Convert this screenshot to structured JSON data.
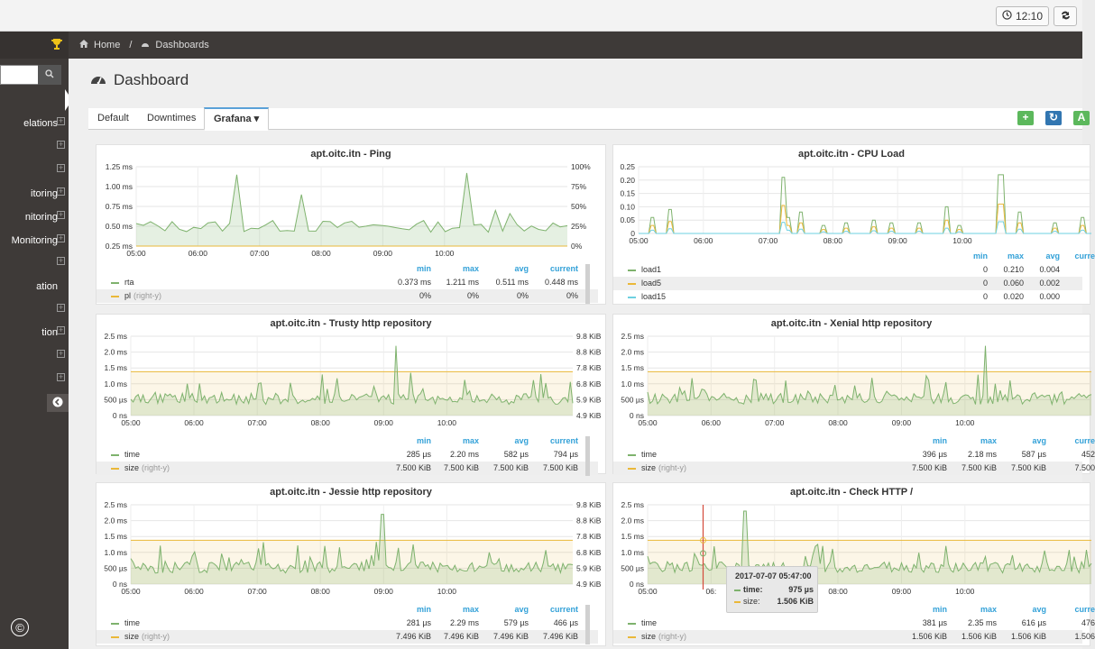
{
  "topbar": {
    "clock": "12:10"
  },
  "sidebar": {
    "items": [
      {
        "label": "elations",
        "plus": true
      },
      {
        "label": "",
        "plus": true
      },
      {
        "label": "",
        "plus": true
      },
      {
        "label": "itoring",
        "plus": true
      },
      {
        "label": "nitoring",
        "plus": true
      },
      {
        "label": "Monitoring",
        "plus": true
      },
      {
        "label": "",
        "plus": true
      },
      {
        "label": "ation",
        "plus": false
      },
      {
        "label": "",
        "plus": true
      },
      {
        "label": "tion",
        "plus": true
      },
      {
        "label": "",
        "plus": true
      },
      {
        "label": "",
        "plus": true
      }
    ],
    "copyright": "©"
  },
  "breadcrumb": {
    "home": "Home",
    "sep": "/",
    "current": "Dashboards"
  },
  "page": {
    "title": "Dashboard"
  },
  "tabs": [
    {
      "label": "Default"
    },
    {
      "label": "Downtimes"
    },
    {
      "label": "Grafana ▾"
    }
  ],
  "toolbar": {
    "add": "+",
    "refresh": "↻",
    "third": "A"
  },
  "colors": {
    "green": "#7eb26d",
    "yellow": "#eab839",
    "cyan": "#6ed0e0",
    "accent": "#33a1d8",
    "red": "#e24d42"
  },
  "panels": [
    {
      "title": "apt.oitc.itn - Ping",
      "yleft": [
        "1.25 ms",
        "1.00 ms",
        "0.75 ms",
        "0.50 ms",
        "0.25 ms"
      ],
      "yright": [
        "100%",
        "75%",
        "50%",
        "25%",
        "0%"
      ],
      "xticks": [
        "05:00",
        "06:00",
        "07:00",
        "08:00",
        "09:00",
        "10:00"
      ],
      "headers": [
        "min",
        "max",
        "avg",
        "current"
      ],
      "rows": [
        {
          "name": "rta",
          "hint": "",
          "color": "#7eb26d",
          "values": [
            "0.373 ms",
            "1.211 ms",
            "0.511 ms",
            "0.448 ms"
          ]
        },
        {
          "name": "pl",
          "hint": "(right-y)",
          "color": "#eab839",
          "values": [
            "0%",
            "0%",
            "0%",
            "0%"
          ]
        }
      ]
    },
    {
      "title": "apt.oitc.itn - CPU Load",
      "yleft": [
        "0.25",
        "0.20",
        "0.15",
        "0.10",
        "0.05",
        "0"
      ],
      "yright": [],
      "xticks": [
        "05:00",
        "06:00",
        "07:00",
        "08:00",
        "09:00",
        "10:00"
      ],
      "headers": [
        "min",
        "max",
        "avg",
        "curre"
      ],
      "rows": [
        {
          "name": "load1",
          "hint": "",
          "color": "#7eb26d",
          "values": [
            "0",
            "0.210",
            "0.004",
            ""
          ]
        },
        {
          "name": "load5",
          "hint": "",
          "color": "#eab839",
          "values": [
            "0",
            "0.060",
            "0.002",
            ""
          ]
        },
        {
          "name": "load15",
          "hint": "",
          "color": "#6ed0e0",
          "values": [
            "0",
            "0.020",
            "0.000",
            ""
          ]
        }
      ]
    },
    {
      "title": "apt.oitc.itn - Trusty http repository",
      "yleft": [
        "2.5 ms",
        "2.0 ms",
        "1.5 ms",
        "1.0 ms",
        "500 µs",
        "0 ns"
      ],
      "yright": [
        "9.8 KiB",
        "8.8 KiB",
        "7.8 KiB",
        "6.8 KiB",
        "5.9 KiB",
        "4.9 KiB"
      ],
      "xticks": [
        "05:00",
        "06:00",
        "07:00",
        "08:00",
        "09:00",
        "10:00"
      ],
      "headers": [
        "min",
        "max",
        "avg",
        "current"
      ],
      "rows": [
        {
          "name": "time",
          "hint": "",
          "color": "#7eb26d",
          "values": [
            "285 µs",
            "2.20 ms",
            "582 µs",
            "794 µs"
          ]
        },
        {
          "name": "size",
          "hint": "(right-y)",
          "color": "#eab839",
          "values": [
            "7.500 KiB",
            "7.500 KiB",
            "7.500 KiB",
            "7.500 KiB"
          ]
        }
      ]
    },
    {
      "title": "apt.oitc.itn - Xenial http repository",
      "yleft": [
        "2.5 ms",
        "2.0 ms",
        "1.5 ms",
        "1.0 ms",
        "500 µs",
        "0 ns"
      ],
      "yright": [],
      "xticks": [
        "05:00",
        "06:00",
        "07:00",
        "08:00",
        "09:00",
        "10:00"
      ],
      "headers": [
        "min",
        "max",
        "avg",
        "curre"
      ],
      "rows": [
        {
          "name": "time",
          "hint": "",
          "color": "#7eb26d",
          "values": [
            "396 µs",
            "2.18 ms",
            "587 µs",
            "452"
          ]
        },
        {
          "name": "size",
          "hint": "(right-y)",
          "color": "#eab839",
          "values": [
            "7.500 KiB",
            "7.500 KiB",
            "7.500 KiB",
            "7.500"
          ]
        }
      ]
    },
    {
      "title": "apt.oitc.itn - Jessie http repository",
      "yleft": [
        "2.5 ms",
        "2.0 ms",
        "1.5 ms",
        "1.0 ms",
        "500 µs",
        "0 ns"
      ],
      "yright": [
        "9.8 KiB",
        "8.8 KiB",
        "7.8 KiB",
        "6.8 KiB",
        "5.9 KiB",
        "4.9 KiB"
      ],
      "xticks": [
        "05:00",
        "06:00",
        "07:00",
        "08:00",
        "09:00",
        "10:00"
      ],
      "headers": [
        "min",
        "max",
        "avg",
        "current"
      ],
      "rows": [
        {
          "name": "time",
          "hint": "",
          "color": "#7eb26d",
          "values": [
            "281 µs",
            "2.29 ms",
            "579 µs",
            "466 µs"
          ]
        },
        {
          "name": "size",
          "hint": "(right-y)",
          "color": "#eab839",
          "values": [
            "7.496 KiB",
            "7.496 KiB",
            "7.496 KiB",
            "7.496 KiB"
          ]
        }
      ]
    },
    {
      "title": "apt.oitc.itn - Check HTTP /",
      "yleft": [
        "2.5 ms",
        "2.0 ms",
        "1.5 ms",
        "1.0 ms",
        "500 µs",
        "0 ns"
      ],
      "yright": [],
      "xticks": [
        "05:00",
        "06:",
        "07:00",
        "08:00",
        "09:00",
        "10:00"
      ],
      "headers": [
        "min",
        "max",
        "avg",
        "curre"
      ],
      "rows": [
        {
          "name": "time",
          "hint": "",
          "color": "#7eb26d",
          "values": [
            "381 µs",
            "2.35 ms",
            "616 µs",
            "476"
          ]
        },
        {
          "name": "size",
          "hint": "(right-y)",
          "color": "#eab839",
          "values": [
            "1.506 KiB",
            "1.506 KiB",
            "1.506 KiB",
            "1.506"
          ]
        }
      ]
    }
  ],
  "tooltip": {
    "title": "2017-07-07 05:47:00",
    "rows": [
      {
        "label": "time:",
        "value": "975 µs",
        "color": "#7eb26d"
      },
      {
        "label": "size:",
        "value": "1.506 KiB",
        "color": "#eab839"
      }
    ]
  }
}
